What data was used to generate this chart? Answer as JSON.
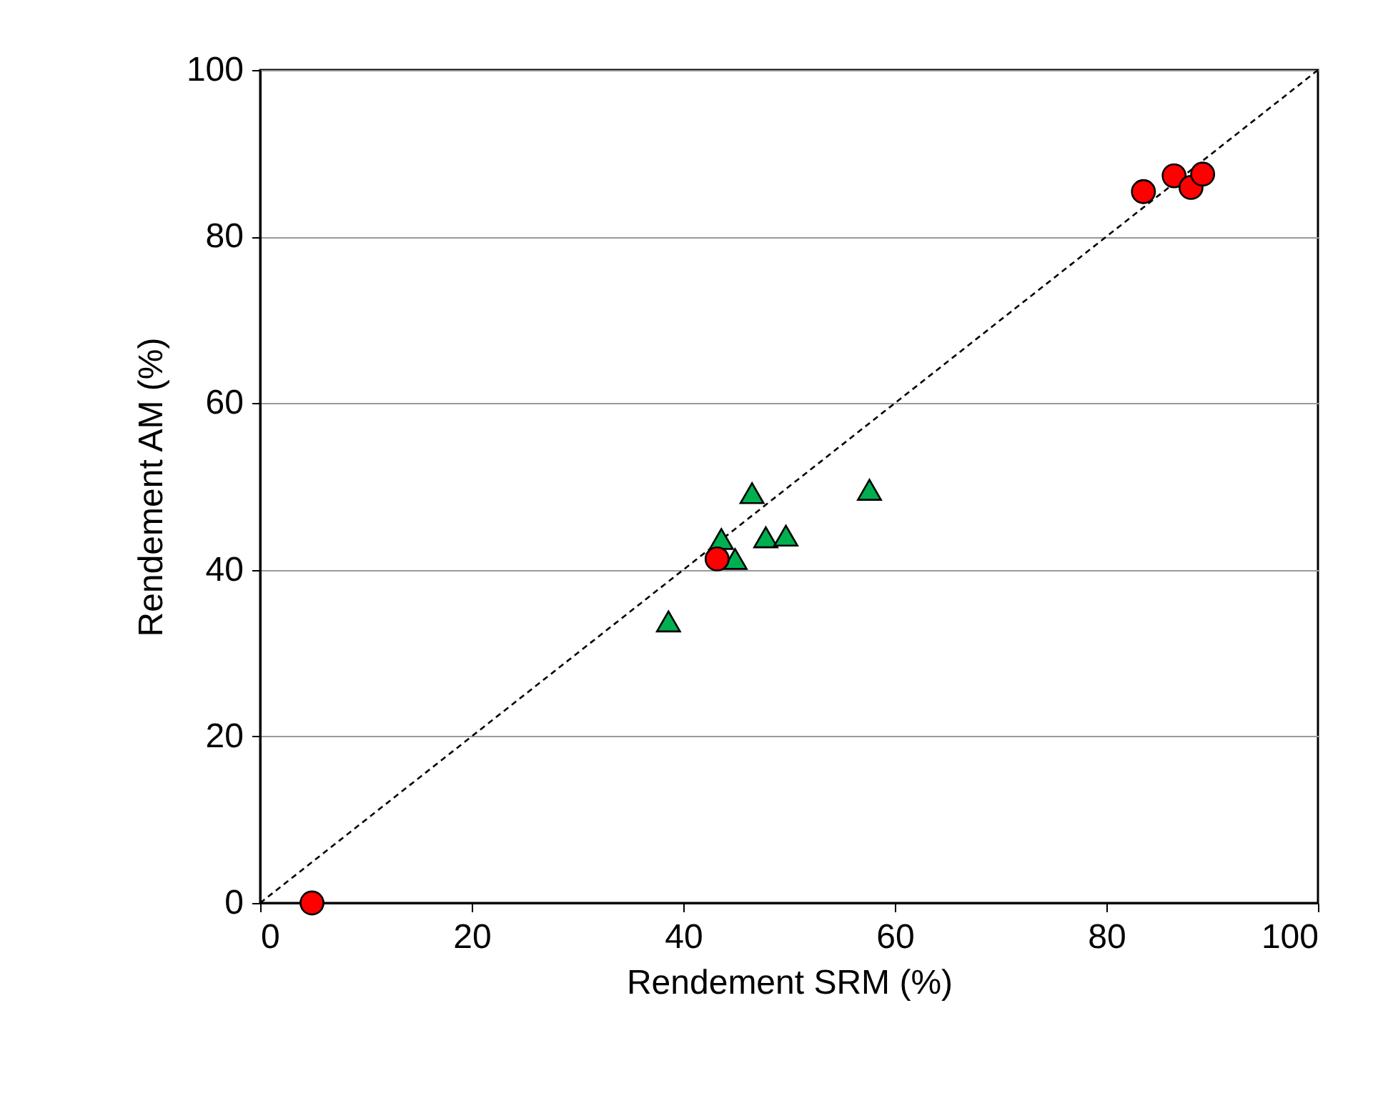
{
  "chart_data": {
    "type": "scatter",
    "xlabel": "Rendement SRM (%)",
    "ylabel": "Rendement AM (%)",
    "xlim": [
      0,
      100
    ],
    "ylim": [
      0,
      100
    ],
    "xticks": [
      0,
      20,
      40,
      60,
      80,
      100
    ],
    "yticks": [
      0,
      20,
      40,
      60,
      80,
      100
    ],
    "grid": "y",
    "series": [
      {
        "type": "line",
        "color": "#000000",
        "line_style": "dashed",
        "marker": "none",
        "x": [
          0,
          100
        ],
        "values": [
          0,
          100
        ]
      },
      {
        "color": "#00b050",
        "marker": "triangle",
        "x": [
          46.5,
          57.6,
          43.6,
          47.8,
          49.7,
          44.9,
          38.6
        ],
        "values": [
          49.2,
          49.6,
          43.7,
          43.9,
          44.1,
          41.3,
          33.8
        ]
      },
      {
        "color": "#ff0000",
        "marker": "circle",
        "x": [
          43.2,
          83.5,
          86.4,
          88.0,
          89.1,
          4.9
        ],
        "values": [
          41.3,
          85.4,
          87.3,
          85.9,
          87.5,
          0
        ]
      }
    ]
  }
}
